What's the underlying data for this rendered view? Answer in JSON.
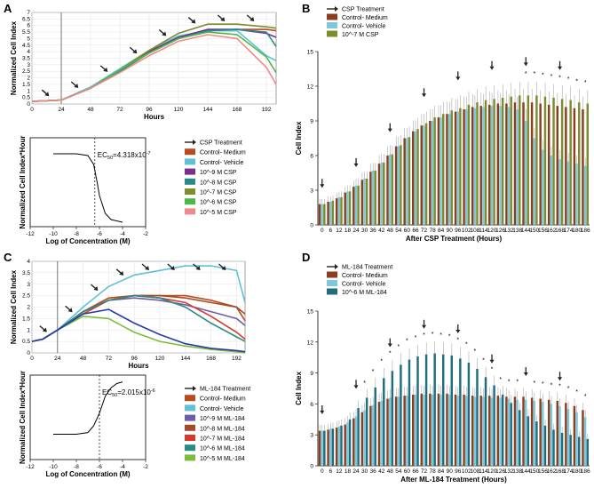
{
  "chart_data": [
    {
      "panel": "A",
      "type": "line",
      "xlabel": "Hours",
      "ylabel": "Normalized Cell Index",
      "xticks": [
        "0",
        "24",
        "48",
        "72",
        "96",
        "120",
        "144",
        "168",
        "192"
      ],
      "yticks": [
        "0",
        "0.5",
        "1",
        "1.5",
        "2",
        "2.5",
        "3",
        "3.5",
        "4",
        "4.5",
        "5",
        "5.5",
        "6",
        "6.5",
        "7"
      ],
      "xlim": [
        0,
        200
      ],
      "ylim": [
        0,
        7
      ],
      "treatment_arrows_hours": [
        14,
        38,
        62,
        86,
        110,
        134,
        158,
        182
      ],
      "series": [
        {
          "name": "Control- Medium",
          "color": "#b94a1e",
          "x": [
            0,
            24,
            48,
            72,
            96,
            120,
            144,
            168,
            192,
            200
          ],
          "y": [
            0.2,
            0.3,
            1.2,
            2.5,
            3.9,
            5.0,
            5.6,
            5.7,
            5.7,
            5.6
          ]
        },
        {
          "name": "Control- Vehicle",
          "color": "#5fc1d8",
          "x": [
            0,
            24,
            48,
            72,
            96,
            120,
            144,
            168,
            192,
            200
          ],
          "y": [
            0.2,
            0.3,
            1.3,
            2.7,
            4.1,
            5.2,
            5.6,
            5.6,
            3.7,
            3.3
          ]
        },
        {
          "name": "10^-9 M CSP",
          "color": "#7a2c8f",
          "x": [
            0,
            24,
            48,
            72,
            96,
            120,
            144,
            168,
            192,
            200
          ],
          "y": [
            0.2,
            0.3,
            1.2,
            2.6,
            4.0,
            5.1,
            5.7,
            5.7,
            5.4,
            5.1
          ]
        },
        {
          "name": "10^-8 M CSP",
          "color": "#2a8a86",
          "x": [
            0,
            24,
            48,
            72,
            96,
            120,
            144,
            168,
            192,
            200
          ],
          "y": [
            0.2,
            0.3,
            1.2,
            2.5,
            3.9,
            5.0,
            5.6,
            5.7,
            5.5,
            4.4
          ]
        },
        {
          "name": "10^-7 M CSP",
          "color": "#7d8c2e",
          "x": [
            0,
            24,
            48,
            72,
            96,
            120,
            144,
            168,
            192,
            200
          ],
          "y": [
            0.2,
            0.3,
            1.2,
            2.6,
            4.1,
            5.4,
            6.1,
            6.1,
            5.9,
            5.8
          ]
        },
        {
          "name": "10^-6 M CSP",
          "color": "#4cb848",
          "x": [
            0,
            24,
            48,
            72,
            96,
            120,
            144,
            168,
            192,
            200
          ],
          "y": [
            0.2,
            0.3,
            1.2,
            2.6,
            3.9,
            5.0,
            5.5,
            5.3,
            3.6,
            2.4
          ]
        },
        {
          "name": "10^-5 M CSP",
          "color": "#f08a8a",
          "x": [
            0,
            24,
            48,
            72,
            96,
            120,
            144,
            168,
            192,
            200
          ],
          "y": [
            0.2,
            0.3,
            1.2,
            2.4,
            3.7,
            4.8,
            5.3,
            5.0,
            2.8,
            1.5
          ]
        }
      ]
    },
    {
      "panel": "A-inset",
      "type": "line",
      "xlabel": "Log of Concentration (M)",
      "ylabel": "Normalized Cell Index*Hour",
      "xticks": [
        "-12",
        "-10",
        "-8",
        "-6",
        "-4",
        "-2"
      ],
      "xlim": [
        -12,
        -2
      ],
      "annotation": {
        "label": "EC",
        "sub": "50",
        "value": "=4.318x10",
        "exp": "-7"
      },
      "vline_x": -6.4,
      "curve": {
        "x": [
          -10,
          -8,
          -7,
          -6.5,
          -6.2,
          -6,
          -5.5,
          -5,
          -4
        ],
        "y": [
          0.82,
          0.82,
          0.8,
          0.7,
          0.5,
          0.35,
          0.15,
          0.08,
          0.05
        ]
      }
    },
    {
      "panel": "B",
      "type": "bar",
      "xlabel": "After CSP Treatment (Hours)",
      "ylabel": "Cell Index",
      "yticks": [
        "0",
        "3",
        "6",
        "9",
        "12",
        "15"
      ],
      "ylim": [
        0,
        15
      ],
      "xticks": [
        "0",
        "6",
        "12",
        "18",
        "24",
        "30",
        "36",
        "42",
        "48",
        "54",
        "60",
        "66",
        "72",
        "78",
        "84",
        "90",
        "96",
        "102",
        "108",
        "114",
        "120",
        "126",
        "132",
        "138",
        "144",
        "150",
        "156",
        "162",
        "168",
        "174",
        "180",
        "186"
      ],
      "legend": [
        "CSP Treatment",
        "Control- Medium",
        "Control- Vehicle",
        "10^-7 M CSP"
      ],
      "colors": [
        "#8b3f1e",
        "#7ec8de",
        "#7d8c2e"
      ],
      "series": [
        {
          "name": "Control- Medium",
          "values": [
            1.8,
            2.0,
            2.3,
            2.8,
            3.3,
            3.9,
            4.6,
            5.3,
            6.0,
            6.8,
            7.5,
            8.1,
            8.6,
            9.0,
            9.3,
            9.6,
            9.8,
            10.0,
            10.2,
            10.3,
            10.4,
            10.5,
            10.5,
            10.6,
            10.6,
            10.6,
            10.5,
            10.4,
            10.3,
            10.2,
            10.1,
            10.0
          ]
        },
        {
          "name": "Control- Vehicle",
          "values": [
            1.8,
            2.0,
            2.4,
            2.9,
            3.4,
            4.0,
            4.7,
            5.4,
            6.1,
            6.8,
            7.5,
            8.1,
            8.6,
            9.0,
            9.3,
            9.6,
            9.8,
            10.0,
            10.1,
            10.2,
            10.3,
            10.3,
            10.2,
            10.0,
            9.0,
            7.5,
            6.5,
            6.0,
            5.7,
            5.5,
            5.3,
            5.1
          ]
        },
        {
          "name": "10^-7 M CSP",
          "values": [
            1.8,
            2.1,
            2.4,
            2.9,
            3.4,
            4.0,
            4.7,
            5.4,
            6.1,
            6.9,
            7.6,
            8.3,
            8.8,
            9.3,
            9.6,
            9.9,
            10.1,
            10.4,
            10.6,
            10.8,
            10.9,
            11.0,
            11.1,
            11.2,
            11.2,
            11.2,
            11.1,
            11.0,
            10.9,
            10.8,
            10.6,
            10.5
          ]
        }
      ],
      "treatment_arrow_hours": [
        0,
        24,
        48,
        72,
        96,
        120,
        144,
        168
      ],
      "sig_label": "*"
    },
    {
      "panel": "C",
      "type": "line",
      "xlabel": "Hours",
      "ylabel": "Normalized Cell Index",
      "xticks": [
        "0",
        "24",
        "48",
        "72",
        "96",
        "120",
        "144",
        "168",
        "192"
      ],
      "yticks": [
        "0",
        "0.5",
        "1",
        "1.5",
        "2",
        "2.5",
        "3",
        "3.5",
        "4"
      ],
      "xlim": [
        0,
        200
      ],
      "ylim": [
        0,
        4
      ],
      "treatment_arrows_hours": [
        14,
        38,
        62,
        86,
        110,
        134,
        158,
        182
      ],
      "series": [
        {
          "name": "Control- Medium",
          "color": "#b94a1e",
          "x": [
            0,
            10,
            24,
            48,
            72,
            96,
            120,
            144,
            168,
            192,
            200
          ],
          "y": [
            0.5,
            0.6,
            1.0,
            1.8,
            2.4,
            2.5,
            2.5,
            2.5,
            2.3,
            2.0,
            1.4
          ]
        },
        {
          "name": "Control- Vehicle",
          "color": "#5fc1d8",
          "x": [
            0,
            10,
            24,
            48,
            72,
            96,
            120,
            144,
            168,
            192,
            200
          ],
          "y": [
            0.5,
            0.6,
            1.0,
            2.0,
            2.9,
            3.4,
            3.6,
            3.8,
            3.8,
            3.6,
            2.2
          ]
        },
        {
          "name": "10^-9 M ML-184",
          "color": "#6d5da8",
          "x": [
            0,
            10,
            24,
            48,
            72,
            96,
            120,
            144,
            168,
            192,
            200
          ],
          "y": [
            0.5,
            0.6,
            1.0,
            1.8,
            2.3,
            2.4,
            2.3,
            2.1,
            1.8,
            1.5,
            1.2
          ]
        },
        {
          "name": "10^-8 M ML-184",
          "color": "#a34a2a",
          "x": [
            0,
            10,
            24,
            48,
            72,
            96,
            120,
            144,
            168,
            192,
            200
          ],
          "y": [
            0.5,
            0.6,
            1.0,
            1.8,
            2.3,
            2.5,
            2.5,
            2.4,
            2.2,
            2.0,
            1.7
          ]
        },
        {
          "name": "10^-7 M ML-184",
          "color": "#d63a2b",
          "x": [
            0,
            10,
            24,
            48,
            72,
            96,
            120,
            144,
            168,
            192,
            200
          ],
          "y": [
            0.5,
            0.6,
            1.0,
            1.7,
            2.3,
            2.5,
            2.4,
            2.2,
            1.6,
            0.9,
            0.6
          ]
        },
        {
          "name": "10^-6 M ML-184",
          "color": "#2a8a86",
          "x": [
            0,
            10,
            24,
            48,
            72,
            96,
            120,
            144,
            168,
            192,
            200
          ],
          "y": [
            0.5,
            0.6,
            1.0,
            1.8,
            2.3,
            2.5,
            2.4,
            2.0,
            1.3,
            0.7,
            0.5
          ]
        },
        {
          "name": "10^-5 M ML-184",
          "color": "#7dbb3a",
          "x": [
            0,
            10,
            24,
            48,
            72,
            96,
            120,
            144,
            168,
            192,
            200
          ],
          "y": [
            0.5,
            0.6,
            1.0,
            1.6,
            1.5,
            0.9,
            0.5,
            0.3,
            0.15,
            0.05,
            0.0
          ]
        },
        {
          "name": "",
          "color": "#2a3aa8",
          "x": [
            0,
            10,
            24,
            48,
            72,
            96,
            120,
            144,
            168,
            192,
            200
          ],
          "y": [
            0.5,
            0.6,
            1.0,
            1.7,
            1.9,
            1.3,
            0.8,
            0.4,
            0.2,
            0.1,
            0.05
          ]
        }
      ]
    },
    {
      "panel": "C-inset",
      "type": "line",
      "xlabel": "Log of Concentration (M)",
      "ylabel": "Normalized Cell Index*Hour",
      "xticks": [
        "-12",
        "-10",
        "-8",
        "-6",
        "-4",
        "-2"
      ],
      "xlim": [
        -12,
        -2
      ],
      "annotation": {
        "label": "EC",
        "sub": "50",
        "value": "=2.015x10",
        "exp": "-6"
      },
      "vline_x": -6,
      "curve": {
        "x": [
          -10,
          -8,
          -7,
          -6.5,
          -6,
          -5.5,
          -5,
          -4.5,
          -4
        ],
        "y": [
          0.3,
          0.3,
          0.32,
          0.4,
          0.55,
          0.75,
          0.85,
          0.9,
          0.92
        ]
      }
    },
    {
      "panel": "D",
      "type": "bar",
      "xlabel": "After ML-184 Treatment (Hours)",
      "ylabel": "Cell Index",
      "yticks": [
        "0",
        "3",
        "6",
        "9",
        "12",
        "15"
      ],
      "ylim": [
        0,
        15
      ],
      "xticks": [
        "0",
        "6",
        "12",
        "18",
        "24",
        "30",
        "36",
        "42",
        "48",
        "54",
        "60",
        "66",
        "72",
        "78",
        "84",
        "90",
        "96",
        "102",
        "108",
        "114",
        "120",
        "126",
        "132",
        "138",
        "144",
        "150",
        "156",
        "162",
        "168",
        "174",
        "180",
        "186"
      ],
      "legend": [
        "ML-184 Treatment",
        "Control- Medium",
        "Control- Vehicle",
        "10^-6 M ML-184"
      ],
      "colors": [
        "#8b3f1e",
        "#7ec8de",
        "#1f6e80"
      ],
      "series": [
        {
          "name": "Control- Medium",
          "values": [
            3.4,
            3.5,
            3.7,
            4.0,
            4.6,
            5.2,
            5.8,
            6.2,
            6.5,
            6.7,
            6.8,
            6.9,
            7.0,
            7.0,
            7.0,
            7.0,
            6.9,
            6.9,
            6.8,
            6.8,
            6.8,
            6.8,
            6.7,
            6.7,
            6.7,
            6.6,
            6.5,
            6.4,
            6.3,
            6.1,
            5.8,
            5.4
          ]
        },
        {
          "name": "Control- Vehicle",
          "values": [
            3.4,
            3.6,
            3.8,
            4.2,
            4.8,
            5.4,
            5.9,
            6.3,
            6.6,
            6.7,
            6.8,
            6.9,
            6.9,
            6.9,
            6.9,
            6.9,
            6.8,
            6.8,
            6.7,
            6.7,
            6.6,
            6.6,
            6.5,
            6.4,
            6.4,
            6.3,
            6.2,
            6.0,
            5.8,
            5.5,
            5.2,
            4.7
          ]
        },
        {
          "name": "10^-6 M ML-184",
          "values": [
            3.4,
            3.6,
            3.9,
            4.5,
            5.6,
            6.6,
            7.6,
            8.5,
            9.2,
            9.8,
            10.3,
            10.6,
            10.8,
            10.9,
            10.8,
            10.7,
            10.4,
            10.0,
            9.4,
            8.6,
            7.8,
            6.9,
            6.1,
            5.4,
            4.8,
            4.3,
            3.9,
            3.5,
            3.2,
            3.0,
            2.8,
            2.6
          ]
        }
      ],
      "treatment_arrow_hours": [
        0,
        24,
        48,
        72,
        96,
        120,
        144,
        168
      ],
      "sig_label": "*"
    }
  ]
}
